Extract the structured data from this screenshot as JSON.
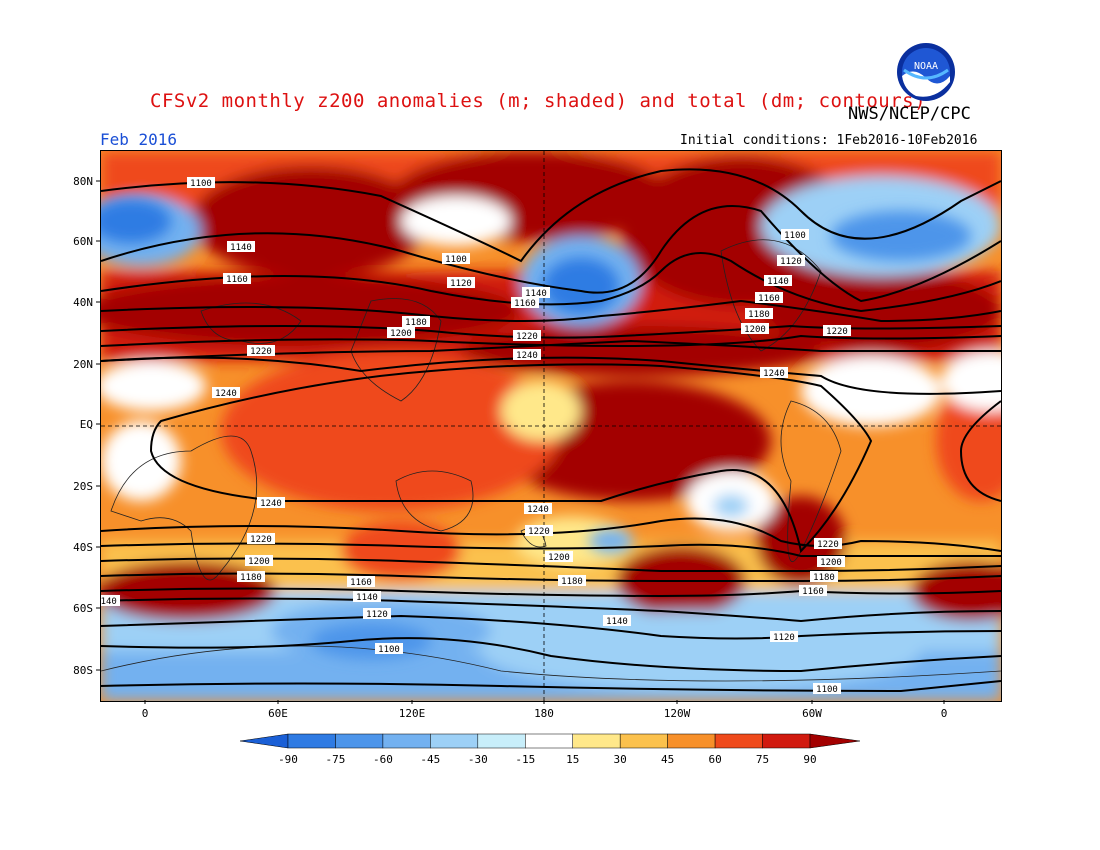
{
  "header": {
    "title": "CFSv2 monthly z200 anomalies (m; shaded) and total (dm; contours)",
    "month": "Feb 2016",
    "agency": "NWS/NCEP/CPC",
    "initial_conditions": "Initial conditions: 1Feb2016-10Feb2016",
    "logo_text": "NOAA"
  },
  "axes": {
    "lat_labels": [
      "80N",
      "60N",
      "40N",
      "20N",
      "EQ",
      "20S",
      "40S",
      "60S",
      "80S"
    ],
    "lon_labels": [
      "0",
      "60E",
      "120E",
      "180",
      "120W",
      "60W",
      "0"
    ]
  },
  "contours": [
    {
      "value": "1100",
      "label": "1100"
    },
    {
      "value": "1120",
      "label": "1120"
    },
    {
      "value": "1140",
      "label": "1140"
    },
    {
      "value": "1160",
      "label": "1160"
    },
    {
      "value": "1180",
      "label": "1180"
    },
    {
      "value": "1200",
      "label": "1200"
    },
    {
      "value": "1220",
      "label": "1220"
    },
    {
      "value": "1240",
      "label": "1240"
    }
  ],
  "colorbar": {
    "ticks": [
      "-90",
      "-75",
      "-60",
      "-45",
      "-30",
      "-15",
      "15",
      "30",
      "45",
      "60",
      "75",
      "90"
    ],
    "colors": [
      "#1a5fd6",
      "#2f7be3",
      "#4d95ea",
      "#73b1f0",
      "#9dd0f6",
      "#c8eefa",
      "#ffffff",
      "#ffe88a",
      "#fbc14d",
      "#f7902a",
      "#ef4a1b",
      "#d11a0f",
      "#a30000"
    ]
  }
}
